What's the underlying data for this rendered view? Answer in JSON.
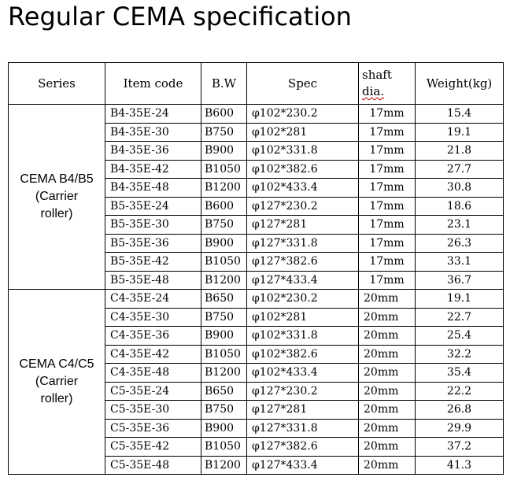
{
  "title": "Regular CEMA specification",
  "headers": {
    "series": "Series",
    "item_code": "Item code",
    "bw": "B.W",
    "spec": "Spec",
    "shaft_line1": "shaft",
    "shaft_line2": "dia.",
    "weight": "Weight(kg)"
  },
  "groups": [
    {
      "series_line1": "CEMA B4/B5",
      "series_line2": "(Carrier",
      "series_line3": "roller)",
      "rows": [
        {
          "item": "B4-35E-24",
          "bw": "B600",
          "spec": "φ102*230.2",
          "shaft": "17mm",
          "weight": "15.4"
        },
        {
          "item": "B4-35E-30",
          "bw": "B750",
          "spec": "φ102*281",
          "shaft": "17mm",
          "weight": "19.1"
        },
        {
          "item": "B4-35E-36",
          "bw": "B900",
          "spec": "φ102*331.8",
          "shaft": "17mm",
          "weight": "21.8"
        },
        {
          "item": "B4-35E-42",
          "bw": "B1050",
          "spec": "φ102*382.6",
          "shaft": "17mm",
          "weight": "27.7"
        },
        {
          "item": "B4-35E-48",
          "bw": "B1200",
          "spec": "φ102*433.4",
          "shaft": "17mm",
          "weight": "30.8"
        },
        {
          "item": "B5-35E-24",
          "bw": "B600",
          "spec": "φ127*230.2",
          "shaft": "17mm",
          "weight": "18.6"
        },
        {
          "item": "B5-35E-30",
          "bw": "B750",
          "spec": "φ127*281",
          "shaft": "17mm",
          "weight": "23.1"
        },
        {
          "item": "B5-35E-36",
          "bw": "B900",
          "spec": "φ127*331.8",
          "shaft": "17mm",
          "weight": "26.3"
        },
        {
          "item": "B5-35E-42",
          "bw": "B1050",
          "spec": "φ127*382.6",
          "shaft": "17mm",
          "weight": "33.1"
        },
        {
          "item": "B5-35E-48",
          "bw": "B1200",
          "spec": "φ127*433.4",
          "shaft": "17mm",
          "weight": "36.7"
        }
      ]
    },
    {
      "series_line1": "CEMA C4/C5",
      "series_line2": "(Carrier",
      "series_line3": "roller)",
      "rows": [
        {
          "item": "C4-35E-24",
          "bw": "B650",
          "spec": "φ102*230.2",
          "shaft": "20mm",
          "weight": "19.1"
        },
        {
          "item": "C4-35E-30",
          "bw": "B750",
          "spec": "φ102*281",
          "shaft": "20mm",
          "weight": "22.7"
        },
        {
          "item": "C4-35E-36",
          "bw": "B900",
          "spec": "φ102*331.8",
          "shaft": "20mm",
          "weight": "25.4"
        },
        {
          "item": "C4-35E-42",
          "bw": "B1050",
          "spec": "φ102*382.6",
          "shaft": "20mm",
          "weight": "32.2"
        },
        {
          "item": "C4-35E-48",
          "bw": "B1200",
          "spec": "φ102*433.4",
          "shaft": "20mm",
          "weight": "35.4"
        },
        {
          "item": "C5-35E-24",
          "bw": "B650",
          "spec": "φ127*230.2",
          "shaft": "20mm",
          "weight": "22.2"
        },
        {
          "item": "C5-35E-30",
          "bw": "B750",
          "spec": "φ127*281",
          "shaft": "20mm",
          "weight": "26.8"
        },
        {
          "item": "C5-35E-36",
          "bw": "B900",
          "spec": "φ127*331.8",
          "shaft": "20mm",
          "weight": "29.9"
        },
        {
          "item": "C5-35E-42",
          "bw": "B1050",
          "spec": "φ127*382.6",
          "shaft": "20mm",
          "weight": "37.2"
        },
        {
          "item": "C5-35E-48",
          "bw": "B1200",
          "spec": "φ127*433.4",
          "shaft": "20mm",
          "weight": "41.3"
        }
      ]
    }
  ]
}
